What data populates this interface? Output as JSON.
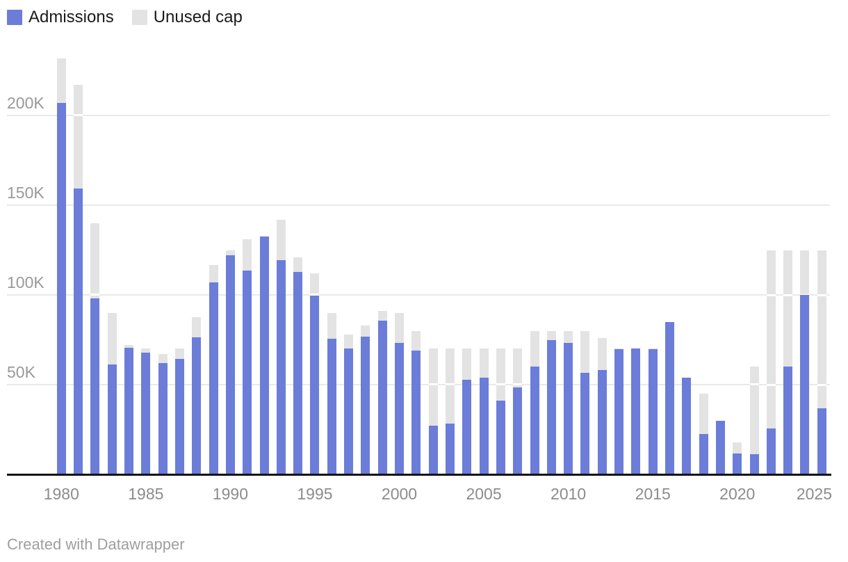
{
  "legend": {
    "items": [
      {
        "label": "Admissions",
        "color": "#6b7dd8"
      },
      {
        "label": "Unused cap",
        "color": "#e3e3e3"
      }
    ]
  },
  "byline": "Created with Datawrapper",
  "colors": {
    "admissions": "#6b7dd8",
    "unused_cap": "#e3e3e3",
    "gridline": "#e9e9e9",
    "gridline_over_bars": "#ffffff",
    "axis_line": "#131313",
    "y_tick_text": "#999999",
    "x_tick_text": "#8c8c8c",
    "legend_text": "#1a1a1a",
    "byline_text": "#9e9e9e"
  },
  "chart_data": {
    "type": "bar",
    "stacked": true,
    "title": "",
    "xlabel": "",
    "ylabel": "",
    "grid": "horizontal",
    "legend_position": "top-left",
    "ylim": [
      0,
      235000
    ],
    "y_ticks": [
      {
        "value": 50000,
        "label": "50K"
      },
      {
        "value": 100000,
        "label": "100K"
      },
      {
        "value": 150000,
        "label": "150K"
      },
      {
        "value": 200000,
        "label": "200K"
      }
    ],
    "x_ticks": [
      "1980",
      "1985",
      "1990",
      "1995",
      "2000",
      "2005",
      "2010",
      "2015",
      "2020",
      "2025"
    ],
    "categories": [
      1980,
      1981,
      1982,
      1983,
      1984,
      1985,
      1986,
      1987,
      1988,
      1989,
      1990,
      1991,
      1992,
      1993,
      1994,
      1995,
      1996,
      1997,
      1998,
      1999,
      2000,
      2001,
      2002,
      2003,
      2004,
      2005,
      2006,
      2007,
      2008,
      2009,
      2010,
      2011,
      2012,
      2013,
      2014,
      2015,
      2016,
      2017,
      2018,
      2019,
      2020,
      2021,
      2022,
      2023,
      2024,
      2025
    ],
    "series": [
      {
        "name": "Admissions",
        "color": "#6b7dd8",
        "values": [
          207116,
          159252,
          98096,
          61218,
          70393,
          67704,
          62146,
          64528,
          76483,
          107070,
          122066,
          113389,
          132531,
          119448,
          112682,
          99490,
          75693,
          70085,
          76712,
          85525,
          73147,
          68925,
          27110,
          28403,
          52873,
          53813,
          41223,
          48282,
          60191,
          74654,
          73311,
          56424,
          58238,
          69926,
          69987,
          69933,
          84994,
          53716,
          22491,
          30000,
          11814,
          11411,
          25465,
          60014,
          100034,
          37000
        ]
      },
      {
        "name": "Unused cap",
        "color": "#e3e3e3",
        "values": [
          24584,
          57748,
          41904,
          28782,
          1607,
          2296,
          4854,
          5472,
          11017,
          9430,
          2934,
          17611,
          0,
          22552,
          8318,
          12510,
          14307,
          7915,
          6288,
          5475,
          16853,
          11075,
          42890,
          41597,
          17127,
          16187,
          28777,
          21718,
          19809,
          5346,
          6689,
          23576,
          17762,
          74,
          13,
          67,
          6,
          0,
          22509,
          0,
          6186,
          48589,
          99535,
          64986,
          24966,
          88000
        ]
      }
    ]
  }
}
